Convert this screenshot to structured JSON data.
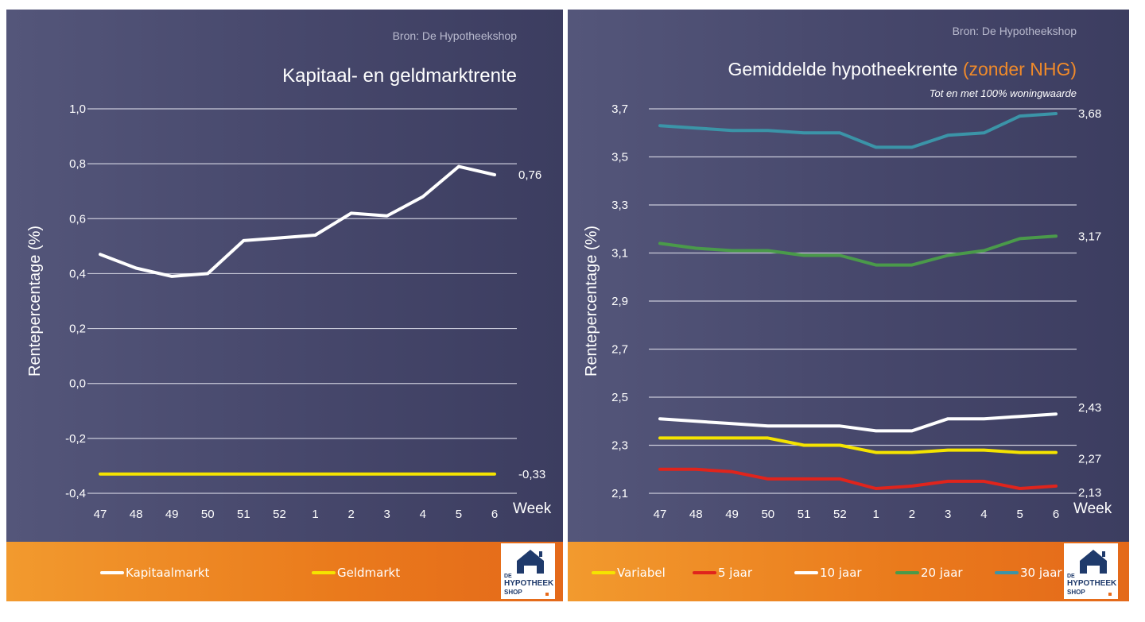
{
  "charts": [
    {
      "source": "Bron: De Hypotheekshop",
      "title_main": "Kapitaal- en geldmarktrente",
      "title_highlight": "",
      "subtitle": "",
      "logo_text": {
        "de": "DE",
        "hyp": "HYPOTHEEK",
        "shop": "SHOP"
      },
      "legend": [
        {
          "label": "Kapitaalmarkt",
          "color": "#ffffff"
        },
        {
          "label": "Geldmarkt",
          "color": "#f5e400"
        }
      ]
    },
    {
      "source": "Bron: De Hypotheekshop",
      "title_main": "Gemiddelde hypotheekrente ",
      "title_highlight": "(zonder NHG)",
      "subtitle": "Tot en met 100% woningwaarde",
      "logo_text": {
        "de": "DE",
        "hyp": "HYPOTHEEK",
        "shop": "SHOP"
      },
      "legend": [
        {
          "label": "Variabel",
          "color": "#f5e400"
        },
        {
          "label": "5 jaar",
          "color": "#e0241c"
        },
        {
          "label": "10 jaar",
          "color": "#ffffff"
        },
        {
          "label": "20 jaar",
          "color": "#4a9a4a"
        },
        {
          "label": "30 jaar",
          "color": "#3b94a8"
        }
      ]
    }
  ],
  "chart_data": [
    {
      "type": "line",
      "title": "Kapitaal- en geldmarktrente",
      "xlabel": "Week",
      "ylabel": "Rentepercentage (%)",
      "categories": [
        "47",
        "48",
        "49",
        "50",
        "51",
        "52",
        "1",
        "2",
        "3",
        "4",
        "5",
        "6"
      ],
      "ylim": [
        -0.4,
        1.0
      ],
      "yticks": [
        1.0,
        0.8,
        0.6,
        0.4,
        0.2,
        0.0,
        -0.2,
        -0.4
      ],
      "ytick_labels": [
        "1,0",
        "0,8",
        "0,6",
        "0,4",
        "0,2",
        "0,0",
        "-0,2",
        "-0,4"
      ],
      "grid": true,
      "legend_position": "bottom",
      "series": [
        {
          "name": "Kapitaalmarkt",
          "color": "#ffffff",
          "values": [
            0.47,
            0.42,
            0.39,
            0.4,
            0.52,
            0.53,
            0.54,
            0.62,
            0.61,
            0.68,
            0.79,
            0.76
          ],
          "end_label": "0,76"
        },
        {
          "name": "Geldmarkt",
          "color": "#f5e400",
          "values": [
            -0.33,
            -0.33,
            -0.33,
            -0.33,
            -0.33,
            -0.33,
            -0.33,
            -0.33,
            -0.33,
            -0.33,
            -0.33,
            -0.33
          ],
          "end_label": "-0,33"
        }
      ]
    },
    {
      "type": "line",
      "title": "Gemiddelde hypotheekrente (zonder NHG)",
      "subtitle": "Tot en met 100% woningwaarde",
      "xlabel": "Week",
      "ylabel": "Rentepercentage (%)",
      "categories": [
        "47",
        "48",
        "49",
        "50",
        "51",
        "52",
        "1",
        "2",
        "3",
        "4",
        "5",
        "6"
      ],
      "ylim": [
        2.1,
        3.7
      ],
      "yticks": [
        3.7,
        3.5,
        3.3,
        3.1,
        2.9,
        2.7,
        2.5,
        2.3,
        2.1
      ],
      "ytick_labels": [
        "3,7",
        "3,5",
        "3,3",
        "3,1",
        "2,9",
        "2,7",
        "2,5",
        "2,3",
        "2,1"
      ],
      "grid": true,
      "legend_position": "bottom",
      "series": [
        {
          "name": "Variabel",
          "color": "#f5e400",
          "values": [
            2.33,
            2.33,
            2.33,
            2.33,
            2.3,
            2.3,
            2.27,
            2.27,
            2.28,
            2.28,
            2.27,
            2.27
          ],
          "end_label": "2,27"
        },
        {
          "name": "5 jaar",
          "color": "#e0241c",
          "values": [
            2.2,
            2.2,
            2.19,
            2.16,
            2.16,
            2.16,
            2.12,
            2.13,
            2.15,
            2.15,
            2.12,
            2.13
          ],
          "end_label": "2,13"
        },
        {
          "name": "10 jaar",
          "color": "#ffffff",
          "values": [
            2.41,
            2.4,
            2.39,
            2.38,
            2.38,
            2.38,
            2.36,
            2.36,
            2.41,
            2.41,
            2.42,
            2.43
          ],
          "end_label": "2,43"
        },
        {
          "name": "20 jaar",
          "color": "#4a9a4a",
          "values": [
            3.14,
            3.12,
            3.11,
            3.11,
            3.09,
            3.09,
            3.05,
            3.05,
            3.09,
            3.11,
            3.16,
            3.17
          ],
          "end_label": "3,17"
        },
        {
          "name": "30 jaar",
          "color": "#3b94a8",
          "values": [
            3.63,
            3.62,
            3.61,
            3.61,
            3.6,
            3.6,
            3.54,
            3.54,
            3.59,
            3.6,
            3.67,
            3.68
          ],
          "end_label": "3,68"
        }
      ]
    }
  ]
}
